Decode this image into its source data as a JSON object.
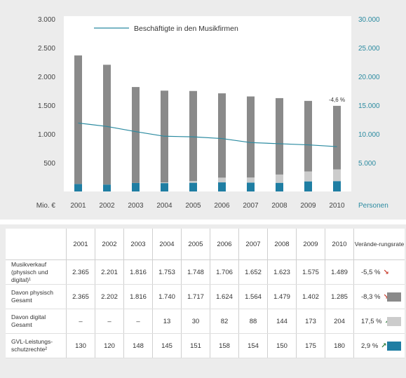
{
  "chart_data": {
    "type": "bar",
    "categories": [
      "2001",
      "2002",
      "2003",
      "2004",
      "2005",
      "2006",
      "2007",
      "2008",
      "2009",
      "2010"
    ],
    "series": [
      {
        "name": "",
        "values": [
          130,
          120,
          148,
          145,
          151,
          158,
          154,
          150,
          175,
          180
        ],
        "color": "#1f7ea3"
      },
      {
        "name": "",
        "values": [
          0,
          1,
          0,
          13,
          30,
          82,
          88,
          144,
          173,
          204
        ],
        "color": "#cccccc"
      },
      {
        "name": "",
        "values": [
          2235,
          2082,
          1668,
          1595,
          1566,
          1466,
          1410,
          1329,
          1227,
          1105
        ],
        "color": "#8a8a8a"
      }
    ],
    "line": {
      "name": "Beschäftigte in den Musikfirmen",
      "values": [
        11900,
        11300,
        10400,
        9600,
        9500,
        9200,
        8500,
        8300,
        8100,
        7800
      ],
      "color": "#2a8aa0"
    },
    "xlabel": "Mio. €",
    "ylabel_right": "Personen",
    "ylim": [
      0,
      3000
    ],
    "ylim_right": [
      0,
      30000
    ],
    "yticks": [
      "500",
      "1.000",
      "1.500",
      "2.000",
      "2.500",
      "3.000"
    ],
    "yticks_values": [
      500,
      1000,
      1500,
      2000,
      2500,
      3000
    ],
    "yticks_right": [
      "5.000",
      "10.000",
      "15.000",
      "20.000",
      "25.000",
      "30.000"
    ],
    "annotation": "-4,6 %",
    "legend_placement": "top-left",
    "grid": false
  },
  "table": {
    "years": [
      "2001",
      "2002",
      "2003",
      "2004",
      "2005",
      "2006",
      "2007",
      "2008",
      "2009",
      "2010"
    ],
    "rate_header": "Verände-rungsrate",
    "rows": [
      {
        "label": "Musikverkauf (physisch und digital)¹",
        "values": [
          "2.365",
          "2.201",
          "1.816",
          "1.753",
          "1.748",
          "1.706",
          "1.652",
          "1.623",
          "1.575",
          "1.489"
        ],
        "rate": "-5,5 %",
        "trend": "down",
        "swatch": ""
      },
      {
        "label": "Davon physisch Gesamt",
        "values": [
          "2.365",
          "2.202",
          "1.816",
          "1.740",
          "1.717",
          "1.624",
          "1.564",
          "1.479",
          "1.402",
          "1.285"
        ],
        "rate": "-8,3 %",
        "trend": "down",
        "swatch": "#8a8a8a"
      },
      {
        "label": "Davon digital Gesamt",
        "values": [
          "–",
          "–",
          "–",
          "13",
          "30",
          "82",
          "88",
          "144",
          "173",
          "204"
        ],
        "rate": "17,5 %",
        "trend": "up",
        "swatch": "#cccccc"
      },
      {
        "label": "GVL-Leistungs-schutzrechte²",
        "values": [
          "130",
          "120",
          "148",
          "145",
          "151",
          "158",
          "154",
          "150",
          "175",
          "180"
        ],
        "rate": "2,9 %",
        "trend": "up",
        "swatch": "#1f7ea3"
      }
    ]
  }
}
